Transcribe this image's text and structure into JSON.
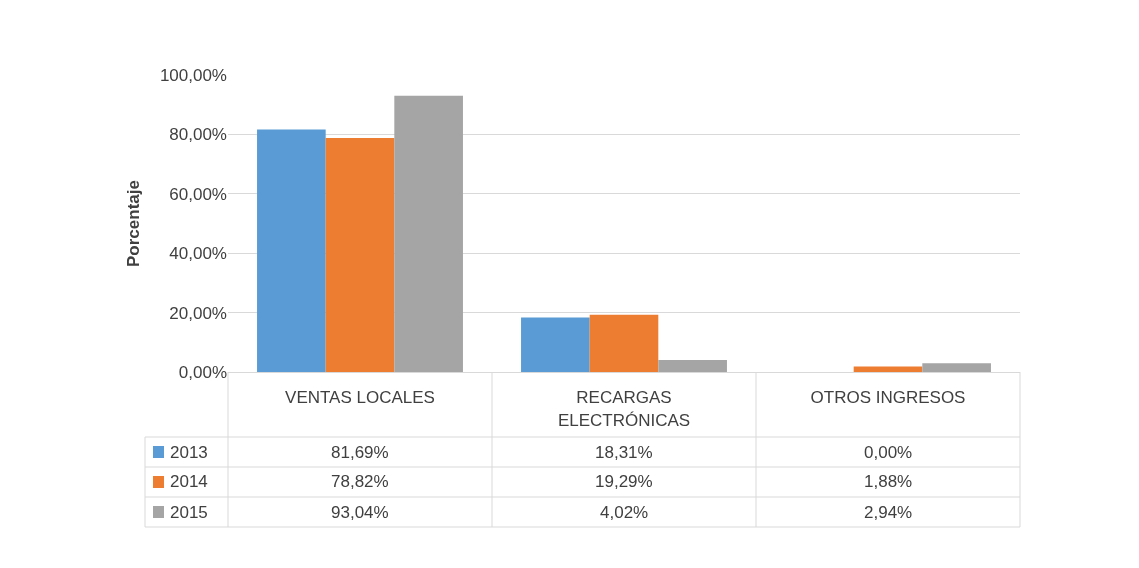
{
  "chart_data": {
    "type": "bar",
    "ylabel": "Porcentaje",
    "categories": [
      "VENTAS LOCALES",
      "RECARGAS ELECTRÓNICAS",
      "OTROS INGRESOS"
    ],
    "series": [
      {
        "name": "2013",
        "color": "#5b9bd5",
        "values": [
          81.69,
          18.31,
          0.0
        ],
        "value_labels": [
          "81,69%",
          "18,31%",
          "0,00%"
        ]
      },
      {
        "name": "2014",
        "color": "#ed7d31",
        "values": [
          78.82,
          19.29,
          1.88
        ],
        "value_labels": [
          "78,82%",
          "19,29%",
          "1,88%"
        ]
      },
      {
        "name": "2015",
        "color": "#a5a5a5",
        "values": [
          93.04,
          4.02,
          2.94
        ],
        "value_labels": [
          "93,04%",
          "4,02%",
          "2,94%"
        ]
      }
    ],
    "ylim": [
      0,
      100
    ],
    "yticks": [
      {
        "value": 0,
        "label": "0,00%"
      },
      {
        "value": 20,
        "label": "20,00%"
      },
      {
        "value": 40,
        "label": "40,00%"
      },
      {
        "value": 60,
        "label": "60,00%"
      },
      {
        "value": 80,
        "label": "80,00%"
      },
      {
        "value": 100,
        "label": "100,00%"
      }
    ],
    "grid": "y",
    "legend": "bottom left"
  }
}
